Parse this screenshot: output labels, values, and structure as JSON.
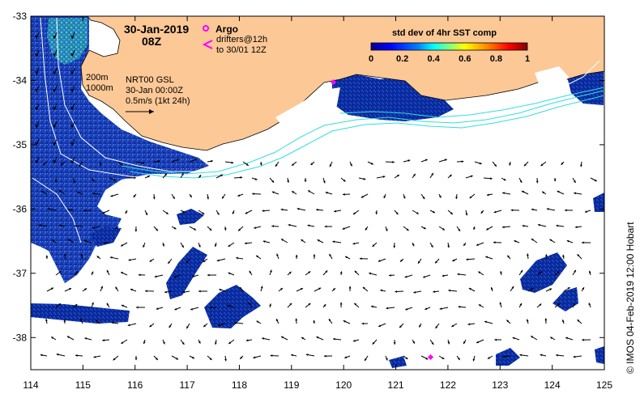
{
  "map": {
    "date": "30-Jan-2019",
    "time": "08Z",
    "argo_label": "Argo",
    "drifters_line1": "drifters@12h",
    "drifters_line2": "to 30/01 12Z",
    "contour_200": "200m",
    "contour_1000": "1000m",
    "model_name": "NRT00 GSL",
    "model_time": "30-Jan 00:00Z",
    "scale_label": "0.5m/s (1kt 24h)",
    "credit": "© IMOS 04-Feb-2019 12:00 Hobart",
    "colors": {
      "land": "#fcc896",
      "argo": "#ff00ff",
      "contour": "#ffffff",
      "track": "#33dddd",
      "cloud": "#ffffff"
    }
  },
  "legend": {
    "title": "std dev of 4hr SST comp",
    "ticks": [
      "0",
      "0.2",
      "0.4",
      "0.6",
      "0.8",
      "1"
    ],
    "colormap": [
      "#00008f",
      "#0000ff",
      "#0080ff",
      "#00ffff",
      "#80ff80",
      "#ffff00",
      "#ff8000",
      "#ff0000",
      "#800000"
    ]
  },
  "axes": {
    "lon_ticks": [
      "114",
      "115",
      "116",
      "117",
      "118",
      "119",
      "120",
      "121",
      "122",
      "123",
      "124",
      "125"
    ],
    "lat_ticks": [
      "-33",
      "-34",
      "-35",
      "-36",
      "-37",
      "-38"
    ],
    "lon_range": [
      114,
      125
    ],
    "lat_range": [
      -38.5,
      -33
    ]
  }
}
